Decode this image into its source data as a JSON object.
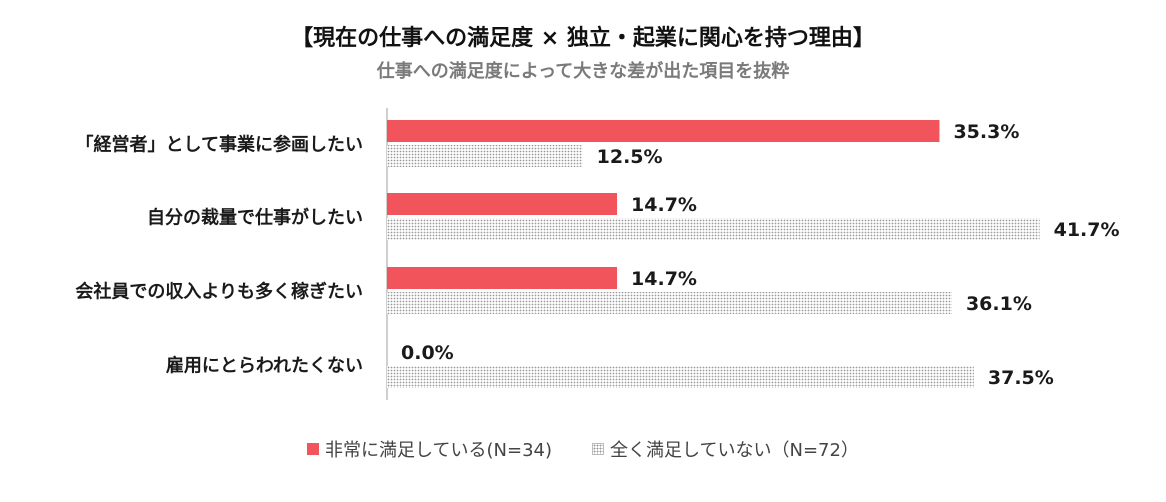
{
  "chart_data": {
    "type": "bar",
    "orientation": "horizontal",
    "title": "【現在の仕事への満足度 × 独立・起業に関心を持つ理由】",
    "subtitle": "仕事への満足度によって大きな差が出た項目を抜粋",
    "categories": [
      "「経営者」として事業に参画したい",
      "自分の裁量で仕事がしたい",
      "会社員での収入よりも多く稼ぎたい",
      "雇用にとらわれたくない"
    ],
    "series": [
      {
        "name": "非常に満足している(N=34)",
        "values": [
          35.3,
          14.7,
          14.7,
          0.0
        ],
        "labels": [
          "35.3%",
          "14.7%",
          "14.7%",
          "0.0%"
        ],
        "color": "#f2545b",
        "style": "solid"
      },
      {
        "name": "全く満足していない（N=72）",
        "values": [
          12.5,
          41.7,
          36.1,
          37.5
        ],
        "labels": [
          "12.5%",
          "41.7%",
          "36.1%",
          "37.5%"
        ],
        "color": "#9a9a9a",
        "style": "dotted-pattern"
      }
    ],
    "unit": "%",
    "xlim": [
      0,
      45
    ],
    "grid": false,
    "legend_position": "bottom"
  }
}
